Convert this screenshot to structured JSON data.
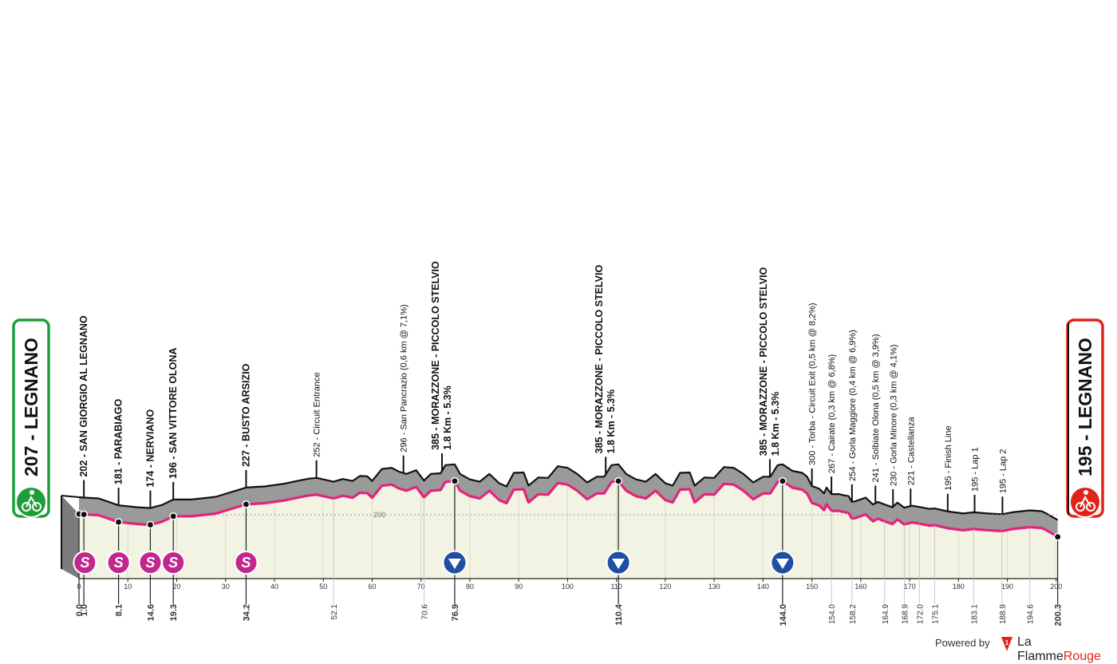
{
  "chart_data": {
    "type": "area",
    "start": {
      "altitude": "207",
      "name": "LEGNANO",
      "label": "207 - LEGNANO",
      "color": "#1e9e3a"
    },
    "finish": {
      "altitude": "195",
      "name": "LEGNANO",
      "label": "195 - LEGNANO",
      "color": "#e2231a"
    },
    "x_axis": {
      "ticks": [
        "0",
        "10",
        "20",
        "30",
        "40",
        "50",
        "60",
        "70",
        "80",
        "90",
        "100",
        "110",
        "120",
        "130",
        "140",
        "150",
        "160",
        "170",
        "180",
        "190",
        "200"
      ],
      "range": [
        0,
        200.3
      ],
      "unit": "km"
    },
    "y_axis": {
      "reference_label": "200",
      "reference_value": 200
    },
    "profile": [
      [
        0,
        202
      ],
      [
        1,
        201
      ],
      [
        4,
        199
      ],
      [
        8.1,
        181
      ],
      [
        12,
        176
      ],
      [
        14.6,
        174
      ],
      [
        17,
        182
      ],
      [
        19.3,
        196
      ],
      [
        23,
        196
      ],
      [
        28,
        203
      ],
      [
        34.2,
        227
      ],
      [
        38,
        230
      ],
      [
        42,
        237
      ],
      [
        45,
        245
      ],
      [
        47,
        250
      ],
      [
        48.6,
        252
      ],
      [
        50,
        248
      ],
      [
        52.1,
        242
      ],
      [
        54,
        249
      ],
      [
        56,
        244
      ],
      [
        57.5,
        257
      ],
      [
        59,
        256
      ],
      [
        60,
        244
      ],
      [
        62,
        275
      ],
      [
        64,
        278
      ],
      [
        65.5,
        268
      ],
      [
        67,
        262
      ],
      [
        69,
        272
      ],
      [
        70.6,
        245
      ],
      [
        72,
        262
      ],
      [
        74,
        264
      ],
      [
        75,
        285
      ],
      [
        76.9,
        287
      ],
      [
        78,
        262
      ],
      [
        80,
        248
      ],
      [
        82,
        242
      ],
      [
        84,
        262
      ],
      [
        86,
        238
      ],
      [
        87.5,
        230
      ],
      [
        89,
        265
      ],
      [
        91,
        266
      ],
      [
        92,
        232
      ],
      [
        94,
        253
      ],
      [
        96,
        252
      ],
      [
        98,
        282
      ],
      [
        100,
        278
      ],
      [
        102,
        262
      ],
      [
        104,
        240
      ],
      [
        106,
        255
      ],
      [
        107.5,
        255
      ],
      [
        109,
        285
      ],
      [
        110.4,
        287
      ],
      [
        112,
        262
      ],
      [
        114,
        248
      ],
      [
        116,
        242
      ],
      [
        118,
        262
      ],
      [
        120,
        238
      ],
      [
        121.5,
        232
      ],
      [
        123,
        265
      ],
      [
        125,
        266
      ],
      [
        126,
        232
      ],
      [
        128,
        253
      ],
      [
        130,
        252
      ],
      [
        132,
        280
      ],
      [
        134,
        278
      ],
      [
        136,
        262
      ],
      [
        138,
        240
      ],
      [
        140,
        255
      ],
      [
        141.5,
        255
      ],
      [
        143,
        285
      ],
      [
        144,
        287
      ],
      [
        146,
        270
      ],
      [
        148,
        265
      ],
      [
        149,
        255
      ],
      [
        150,
        231
      ],
      [
        151.5,
        224
      ],
      [
        152.5,
        212
      ],
      [
        153,
        227
      ],
      [
        154,
        210
      ],
      [
        155.5,
        210
      ],
      [
        156.5,
        207
      ],
      [
        157.5,
        205
      ],
      [
        158.2,
        190
      ],
      [
        159,
        192
      ],
      [
        161,
        201
      ],
      [
        162.5,
        183
      ],
      [
        163.5,
        190
      ],
      [
        164.9,
        183
      ],
      [
        166.5,
        176
      ],
      [
        167.5,
        188
      ],
      [
        168.9,
        175
      ],
      [
        170.5,
        180
      ],
      [
        172,
        177
      ],
      [
        174,
        172
      ],
      [
        175.1,
        173
      ],
      [
        178,
        165
      ],
      [
        181,
        160
      ],
      [
        183.1,
        163
      ],
      [
        186,
        160
      ],
      [
        188.9,
        158
      ],
      [
        191,
        163
      ],
      [
        194.6,
        168
      ],
      [
        197,
        166
      ],
      [
        198,
        160
      ],
      [
        200.3,
        143
      ]
    ],
    "sprints": [
      0.0,
      1.0,
      8.1,
      14.6,
      19.3,
      34.2
    ],
    "sprint_label": "S",
    "kom": [
      76.9,
      110.4,
      144.0
    ],
    "km_labels": [
      {
        "km": 0.0,
        "text": "0.0",
        "bold": true
      },
      {
        "km": 1.0,
        "text": "1.0",
        "bold": true
      },
      {
        "km": 8.1,
        "text": "8.1",
        "bold": true
      },
      {
        "km": 14.6,
        "text": "14.6",
        "bold": true
      },
      {
        "km": 19.3,
        "text": "19.3",
        "bold": true
      },
      {
        "km": 34.2,
        "text": "34.2",
        "bold": true
      },
      {
        "km": 52.1,
        "text": "52.1",
        "bold": false
      },
      {
        "km": 70.6,
        "text": "70.6",
        "bold": false
      },
      {
        "km": 76.9,
        "text": "76.9",
        "bold": true
      },
      {
        "km": 110.4,
        "text": "110.4",
        "bold": true
      },
      {
        "km": 144.0,
        "text": "144.0",
        "bold": true
      },
      {
        "km": 154.0,
        "text": "154.0",
        "bold": false
      },
      {
        "km": 158.2,
        "text": "158.2",
        "bold": false
      },
      {
        "km": 164.9,
        "text": "164.9",
        "bold": false
      },
      {
        "km": 168.9,
        "text": "168.9",
        "bold": false
      },
      {
        "km": 172.0,
        "text": "172.0",
        "bold": false
      },
      {
        "km": 175.1,
        "text": "175.1",
        "bold": false
      },
      {
        "km": 183.1,
        "text": "183.1",
        "bold": false
      },
      {
        "km": 188.9,
        "text": "188.9",
        "bold": false
      },
      {
        "km": 194.6,
        "text": "194.6",
        "bold": false
      },
      {
        "km": 200.3,
        "text": "200.3",
        "bold": true
      }
    ],
    "places": [
      {
        "km": 1.0,
        "alt": 202,
        "text": "202 - SAN GIORGIO AL LEGNANO",
        "bold": true
      },
      {
        "km": 8.1,
        "alt": 181,
        "text": "181 - PARABIAGO",
        "bold": true
      },
      {
        "km": 14.6,
        "alt": 174,
        "text": "174 - NERVIANO",
        "bold": true
      },
      {
        "km": 19.3,
        "alt": 196,
        "text": "196 - SAN VITTORE OLONA",
        "bold": true
      },
      {
        "km": 34.2,
        "alt": 227,
        "text": "227 - BUSTO ARSIZIO",
        "bold": true
      },
      {
        "km": 48.6,
        "alt": 252,
        "text": "252 - Circuit Entrance",
        "bold": false
      },
      {
        "km": 66.4,
        "alt": 296,
        "text": "296 - San Pancrazio (0,6 km @ 7,1%)",
        "bold": false
      },
      {
        "km": 74.3,
        "alt": 385,
        "text": "385 - MORAZZONE - PICCOLO STELVIO",
        "text2": "1.8 Km - 5.3%",
        "bold": true
      },
      {
        "km": 107.8,
        "alt": 385,
        "text": "385 - MORAZZONE - PICCOLO STELVIO",
        "text2": "1.8 Km - 5.3%",
        "bold": true
      },
      {
        "km": 141.4,
        "alt": 385,
        "text": "385 - MORAZZONE - PICCOLO STELVIO",
        "text2": "1.8 Km - 5.3%",
        "bold": true
      },
      {
        "km": 150.0,
        "alt": 300,
        "text": "300 - Torba - Circuit Exit (0,5 km @ 8,2%)",
        "bold": false
      },
      {
        "km": 154.0,
        "alt": 267,
        "text": "267 - Cairate (0,3 km @ 6,8%)",
        "bold": false
      },
      {
        "km": 158.2,
        "alt": 254,
        "text": "254 - Gorla Maggiore (0,4 km @ 6,9%)",
        "bold": false
      },
      {
        "km": 163.0,
        "alt": 241,
        "text": "241 - Solbiate Olona (0,5 km @ 3,9%)",
        "bold": false
      },
      {
        "km": 166.6,
        "alt": 230,
        "text": "230 - Gorla Minore (0,3 km @ 4,1%)",
        "bold": false
      },
      {
        "km": 170.2,
        "alt": 221,
        "text": "221 - Castellanza",
        "bold": false
      },
      {
        "km": 177.8,
        "alt": 195,
        "text": "195 - Finish Line",
        "bold": false
      },
      {
        "km": 183.3,
        "alt": 195,
        "text": "195 - Lap 1",
        "bold": false
      },
      {
        "km": 189.0,
        "alt": 195,
        "text": "195 - Lap 2",
        "bold": false
      }
    ],
    "colors": {
      "profile_gray": "#9a9a9a",
      "plain": "#f3f3e3",
      "route": "#e4237d",
      "kom": "#1e4fa3",
      "sprint": "#c2278f"
    }
  },
  "footer": {
    "powered": "Powered by",
    "brand_a": "La Flamme",
    "brand_b": "Rouge"
  }
}
